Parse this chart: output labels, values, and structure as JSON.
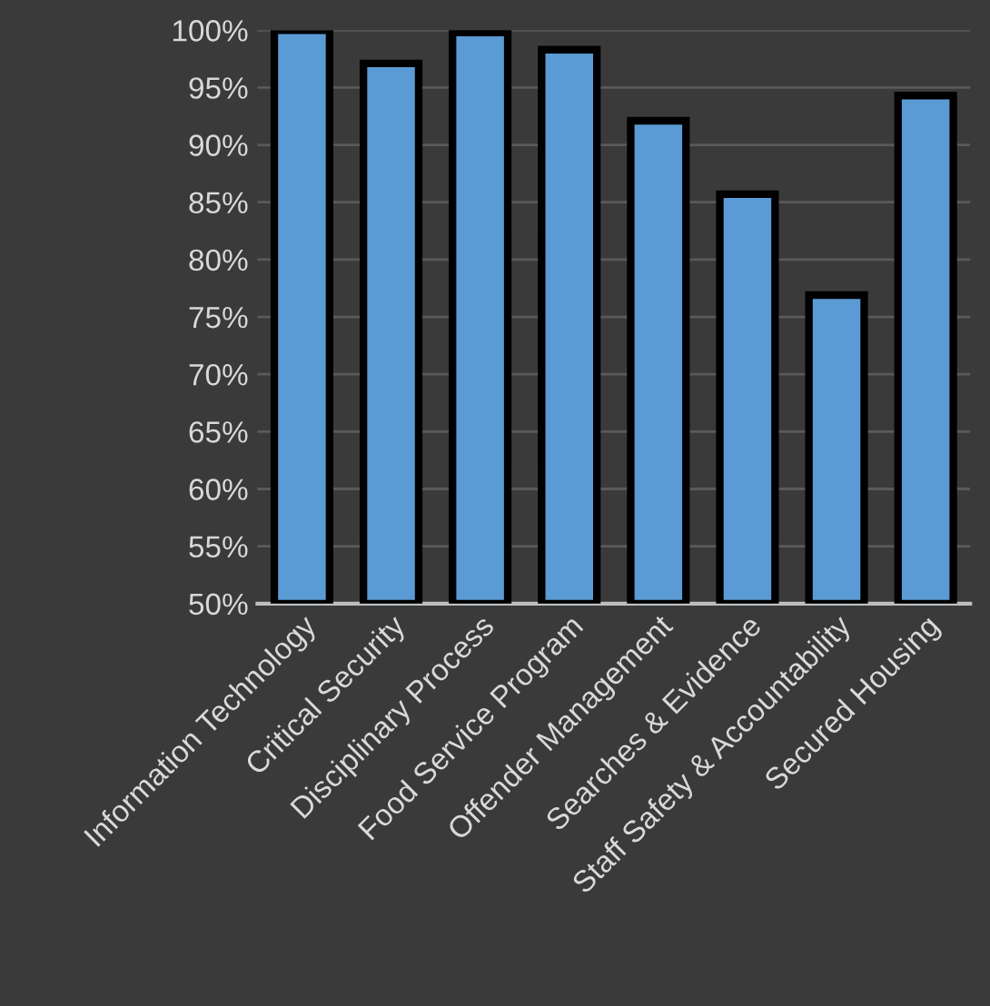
{
  "chart_data": {
    "type": "bar",
    "categories": [
      "Information Technology",
      "Critical Security",
      "Disciplinary Process",
      "Food Service Program",
      "Offender Management",
      "Searches & Evidence",
      "Staff Safety & Accountability",
      "Secured Housing"
    ],
    "values": [
      100,
      97.1,
      99.8,
      98.3,
      92.1,
      85.7,
      76.9,
      94.3
    ],
    "color": "#5b9bd5",
    "ylim": [
      50,
      100
    ],
    "yticks": [
      {
        "value": 50,
        "label": "50%"
      },
      {
        "value": 55,
        "label": "55%"
      },
      {
        "value": 60,
        "label": "60%"
      },
      {
        "value": 65,
        "label": "65%"
      },
      {
        "value": 70,
        "label": "70%"
      },
      {
        "value": 75,
        "label": "75%"
      },
      {
        "value": 80,
        "label": "80%"
      },
      {
        "value": 85,
        "label": "85%"
      },
      {
        "value": 90,
        "label": "90%"
      },
      {
        "value": 95,
        "label": "95%"
      },
      {
        "value": 100,
        "label": "100%"
      }
    ],
    "grid": "y"
  }
}
